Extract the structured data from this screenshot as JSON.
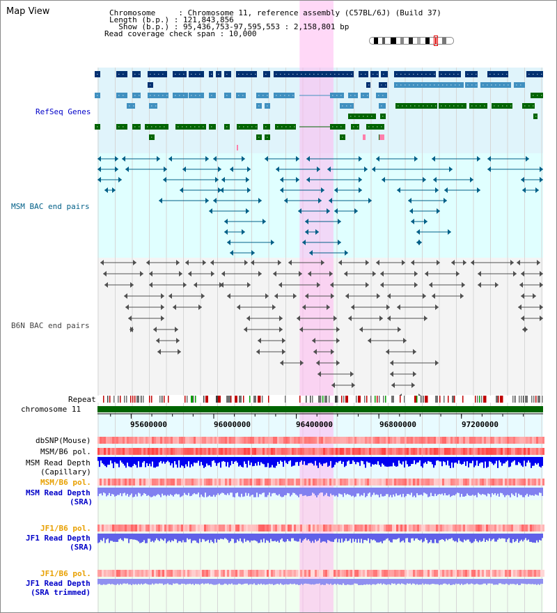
{
  "view_title": "Map View",
  "header": {
    "line1": "Chromosome     : Chromosome 11, reference assembly (C57BL/6J) (Build 37)",
    "line2": "Length (b.p.) : 121,843,856",
    "line3": "  Show (b.p.) : 95,436,753-97,595,553 : 2,158,801 bp",
    "line4": "Read coverage check span : 10,000"
  },
  "tracks": {
    "refseq": "RefSeq Genes",
    "msm_bac": "MSM BAC end pairs",
    "b6n_bac": "B6N BAC end pairs",
    "repeat": "Repeat",
    "chromosome": "chromosome 11",
    "dbsnp": "dbSNP(Mouse)",
    "msm_b6_pol": "MSM/B6 pol.",
    "msm_depth_cap_1": "MSM Read Depth",
    "msm_depth_cap_2": "(Capillary)",
    "msm_b6_pol2": "MSM/B6 pol.",
    "msm_depth_sra_1": "MSM Read Depth",
    "msm_depth_sra_2": "(SRA)",
    "jf1_b6_pol": "JF1/B6 pol.",
    "jf1_depth_sra_1": "JF1 Read Depth",
    "jf1_depth_sra_2": "(SRA)",
    "jf1_b6_pol2": "JF1/B6 pol.",
    "jf1_depth_trim_1": "JF1 Read Depth",
    "jf1_depth_trim_2": "(SRA trimmed)"
  },
  "axis": {
    "ticks": [
      {
        "label": "95600000",
        "value": 95600000
      },
      {
        "label": "96000000",
        "value": 96000000
      },
      {
        "label": "96400000",
        "value": 96400000
      },
      {
        "label": "96800000",
        "value": 96800000
      },
      {
        "label": "97200000",
        "value": 97200000
      }
    ],
    "range": [
      95436753,
      97595553
    ]
  },
  "highlight_range": [
    96416000,
    96580000
  ],
  "colors": {
    "refseq_dark": "#003070",
    "refseq_mid": "#4090c0",
    "refseq_green": "#006400",
    "msm_line": "#005f87",
    "msm_bg": "#e0ffff",
    "b6n_line": "#505050",
    "highlight": "#ffb8f0",
    "chrom": "#006400"
  }
}
